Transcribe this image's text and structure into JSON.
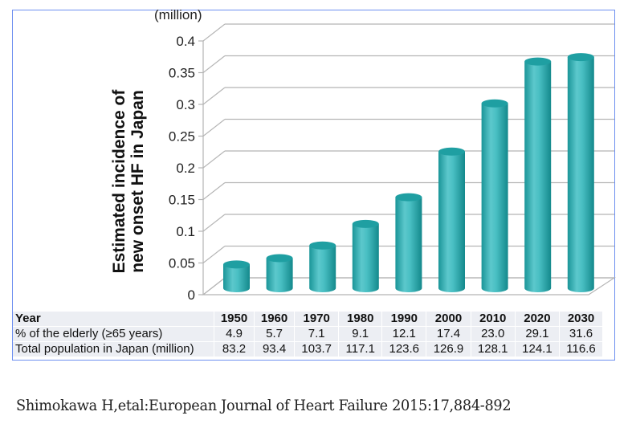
{
  "chart_data": {
    "type": "bar",
    "style": "3d-cylinder",
    "title": "",
    "unit_label": "(million)",
    "ylabel": "Estimated incidence of new onset HF in Japan",
    "ylabel_lines": [
      "Estimated incidence of",
      "new onset HF in Japan"
    ],
    "xlabel": "Year",
    "categories": [
      "1950",
      "1960",
      "1970",
      "1980",
      "1990",
      "2000",
      "2010",
      "2020",
      "2030"
    ],
    "values": [
      0.04,
      0.05,
      0.07,
      0.104,
      0.146,
      0.218,
      0.294,
      0.36,
      0.367
    ],
    "ylim": [
      0,
      0.4
    ],
    "yticks": [
      0,
      0.05,
      0.1,
      0.15,
      0.2,
      0.25,
      0.3,
      0.35,
      0.4
    ],
    "ytick_labels": [
      "0",
      "0.05",
      "0.1",
      "0.15",
      "0.2",
      "0.25",
      "0.3",
      "0.35",
      "0.4"
    ],
    "grid": true,
    "bar_color": "#2fb3b5"
  },
  "table": {
    "rows": [
      {
        "label": "Year",
        "values": [
          "1950",
          "1960",
          "1970",
          "1980",
          "1990",
          "2000",
          "2010",
          "2020",
          "2030"
        ]
      },
      {
        "label": "% of the elderly (≥65 years)",
        "values": [
          "4.9",
          "5.7",
          "7.1",
          "9.1",
          "12.1",
          "17.4",
          "23.0",
          "29.1",
          "31.6"
        ]
      },
      {
        "label": "Total population in Japan (million)",
        "values": [
          "83.2",
          "93.4",
          "103.7",
          "117.1",
          "123.6",
          "126.9",
          "128.1",
          "124.1",
          "116.6"
        ]
      }
    ]
  },
  "citation": "Shimokawa H,etal:European Journal of Heart Failure 2015:17,884-892",
  "colors": {
    "frame": "#6d8ff0",
    "grid": "#b5b5b5",
    "bar": "#2fb3b5",
    "table_bg": "#eceef3"
  }
}
